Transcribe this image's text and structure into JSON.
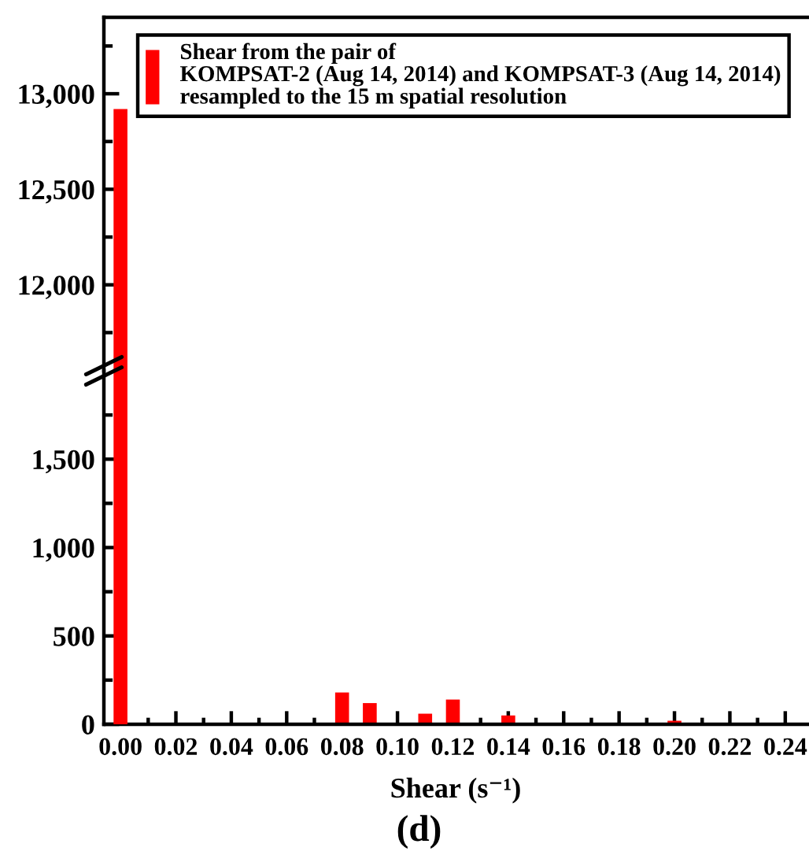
{
  "chart_data": [
    {
      "type": "bar",
      "x": [
        0.0
      ],
      "series": [
        {
          "name": "Shear from the pair of\nKOMPSAT-2 (Aug 14, 2014) and KOMPSAT-3 (Aug 14, 2014)\nresampled to the 15 m spatial resolution",
          "color": "#ff0000",
          "values": [
            12920
          ]
        }
      ],
      "xlim": [
        -0.006,
        0.248
      ],
      "ylim": [
        11550,
        13400
      ],
      "yticks": [
        {
          "value": 11750,
          "label": null
        },
        {
          "value": 12000,
          "label": "12,000"
        },
        {
          "value": 12250,
          "label": null
        },
        {
          "value": 12500,
          "label": "12,500"
        },
        {
          "value": 12750,
          "label": null
        },
        {
          "value": 13000,
          "label": "13,000"
        },
        {
          "value": 13250,
          "label": null
        }
      ],
      "tick_labels": "y",
      "legend": "top"
    },
    {
      "type": "bar",
      "x": [
        0.08,
        0.09,
        0.11,
        0.12,
        0.14,
        0.2
      ],
      "series": [
        {
          "color": "#ff0000",
          "values": [
            180,
            120,
            60,
            140,
            50,
            20
          ]
        }
      ],
      "xlim": [
        -0.006,
        0.248
      ],
      "ylim": [
        0,
        2000
      ],
      "xticks": [
        {
          "value": 0,
          "label": "0.00"
        },
        {
          "value": 0.01,
          "label": null
        },
        {
          "value": 0.02,
          "label": "0.02"
        },
        {
          "value": 0.03,
          "label": null
        },
        {
          "value": 0.04,
          "label": "0.04"
        },
        {
          "value": 0.05,
          "label": null
        },
        {
          "value": 0.06,
          "label": "0.06"
        },
        {
          "value": 0.07,
          "label": null
        },
        {
          "value": 0.08,
          "label": "0.08"
        },
        {
          "value": 0.09,
          "label": null
        },
        {
          "value": 0.1,
          "label": "0.10"
        },
        {
          "value": 0.11,
          "label": null
        },
        {
          "value": 0.12,
          "label": "0.12"
        },
        {
          "value": 0.13,
          "label": null
        },
        {
          "value": 0.14,
          "label": "0.14"
        },
        {
          "value": 0.15,
          "label": null
        },
        {
          "value": 0.16,
          "label": "0.16"
        },
        {
          "value": 0.17,
          "label": null
        },
        {
          "value": 0.18,
          "label": "0.18"
        },
        {
          "value": 0.19,
          "label": null
        },
        {
          "value": 0.2,
          "label": "0.20"
        },
        {
          "value": 0.21,
          "label": null
        },
        {
          "value": 0.22,
          "label": "0.22"
        },
        {
          "value": 0.23,
          "label": null
        },
        {
          "value": 0.24,
          "label": "0.24"
        }
      ],
      "yticks": [
        0,
        {
          "value": 250,
          "label": null
        },
        500,
        {
          "value": 750,
          "label": null
        },
        {
          "value": 1000,
          "label": "1,000"
        },
        {
          "value": 1250,
          "label": null
        },
        {
          "value": 1500,
          "label": "1,500"
        },
        {
          "value": 1750,
          "label": null
        }
      ],
      "xlabel": "Shear (s⁻¹)",
      "annotations": [
        "(d)"
      ]
    }
  ]
}
